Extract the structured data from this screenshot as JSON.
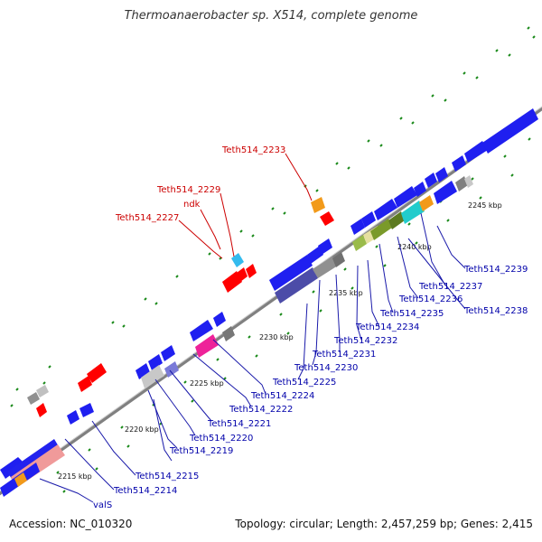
{
  "title": "Thermoanaerobacter sp. X514, complete genome",
  "accession": "Accession: NC_010320",
  "summary": "Topology: circular; Length: 2,457,259 bp; Genes: 2,415",
  "scale_labels": [
    "2215 kbp",
    "2220 kbp",
    "2225 kbp",
    "2230 kbp",
    "2235 kbp",
    "2240 kbp",
    "2245 kbp"
  ],
  "gene_labels_red": [
    "Teth514_2233",
    "Teth514_2229",
    "ndk",
    "Teth514_2227"
  ],
  "gene_labels_blue": [
    "Teth514_2239",
    "Teth514_2237",
    "Teth514_2238",
    "Teth514_2236",
    "Teth514_2235",
    "Teth514_2234",
    "Teth514_2232",
    "Teth514_2231",
    "Teth514_2230",
    "Teth514_2225",
    "Teth514_2224",
    "Teth514_2222",
    "Teth514_2221",
    "Teth514_2220",
    "Teth514_2219",
    "Teth514_2215",
    "Teth514_2214",
    "valS"
  ],
  "colors": {
    "forward_gene": "#1f1ff0",
    "reverse_gene": "#ff0000",
    "label_blue": "#0000aa",
    "label_red": "#cc0000",
    "backbone": "#808080",
    "tick": "#1a8a1a"
  }
}
